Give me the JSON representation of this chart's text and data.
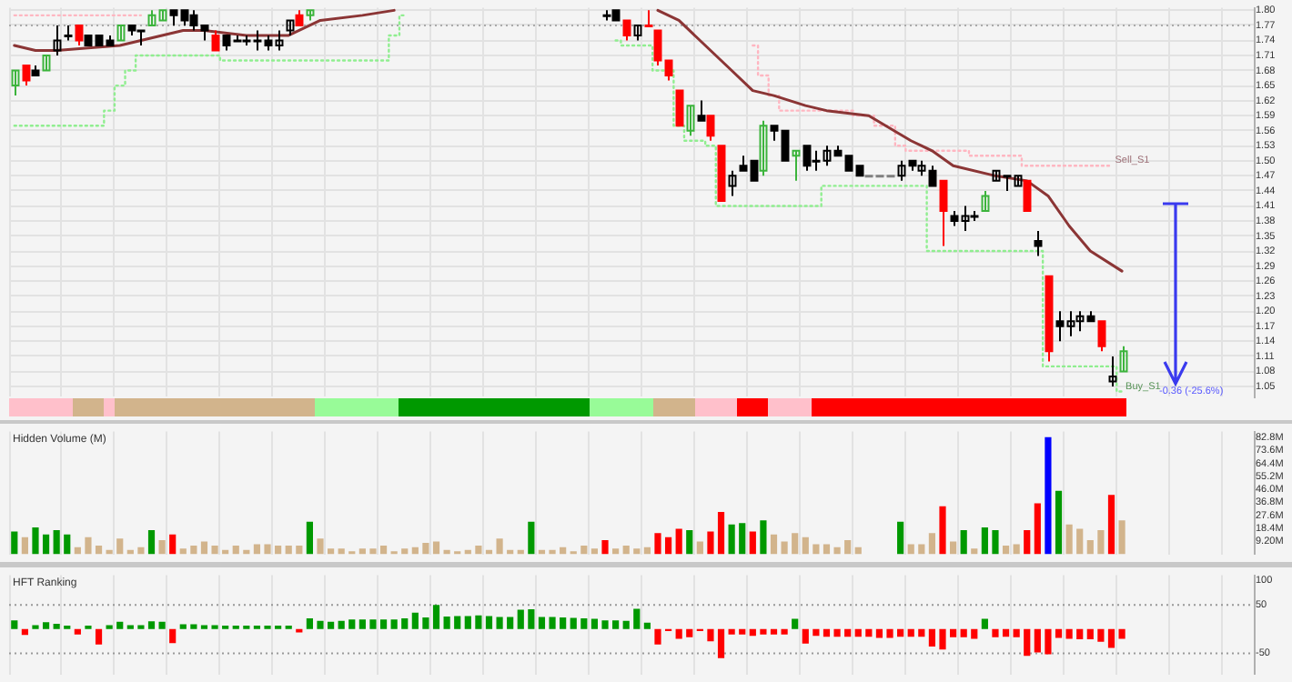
{
  "chart_data": [
    {
      "type": "candlestick",
      "categories": [
        null,
        null,
        null,
        null,
        null,
        null,
        null,
        null,
        null,
        null,
        null,
        null,
        null,
        null,
        null,
        null,
        null,
        null,
        null,
        null,
        null,
        null,
        null,
        null,
        null,
        null,
        null,
        null,
        null,
        null,
        null,
        null,
        null,
        null,
        null,
        null,
        null,
        null,
        null,
        null,
        null,
        null,
        null,
        null,
        null,
        null,
        null,
        null,
        null,
        null,
        null,
        null,
        null,
        null,
        null,
        null,
        null,
        null,
        null,
        null,
        null,
        null,
        null,
        null,
        null,
        null,
        null,
        null,
        null,
        null,
        null,
        null,
        null,
        null,
        null,
        null,
        null,
        null,
        null,
        null,
        null,
        null,
        null,
        null,
        null,
        null,
        null,
        null,
        null,
        null,
        null,
        null,
        null,
        null,
        null,
        null,
        null,
        null,
        null,
        null,
        null,
        null,
        null,
        null,
        null,
        null,
        null,
        null,
        null,
        null,
        null,
        null,
        null,
        null,
        null,
        null,
        null,
        null
      ],
      "ohlc": [
        [
          1.65,
          1.68,
          1.63,
          1.68
        ],
        [
          1.69,
          1.69,
          1.65,
          1.66
        ],
        [
          1.68,
          1.69,
          1.67,
          1.67
        ],
        [
          1.68,
          1.71,
          1.68,
          1.71
        ],
        [
          1.72,
          1.77,
          1.71,
          1.74
        ],
        [
          1.75,
          1.77,
          1.74,
          1.75
        ],
        [
          1.77,
          1.77,
          1.73,
          1.74
        ],
        [
          1.75,
          1.75,
          1.73,
          1.73
        ],
        [
          1.75,
          1.75,
          1.73,
          1.73
        ],
        [
          1.74,
          1.75,
          1.73,
          1.73
        ],
        [
          1.74,
          1.77,
          1.74,
          1.77
        ],
        [
          1.77,
          1.77,
          1.75,
          1.76
        ],
        [
          1.76,
          1.76,
          1.73,
          1.76
        ],
        [
          1.77,
          1.8,
          1.77,
          1.79
        ],
        [
          1.78,
          1.8,
          1.78,
          1.8
        ],
        [
          1.8,
          1.8,
          1.77,
          1.79
        ],
        [
          1.8,
          1.8,
          1.77,
          1.78
        ],
        [
          1.79,
          1.8,
          1.76,
          1.77
        ],
        [
          1.77,
          1.77,
          1.74,
          1.76
        ],
        [
          1.75,
          1.76,
          1.72,
          1.72
        ],
        [
          1.75,
          1.75,
          1.72,
          1.73
        ],
        [
          1.74,
          1.75,
          1.74,
          1.74
        ],
        [
          1.74,
          1.75,
          1.73,
          1.74
        ],
        [
          1.74,
          1.76,
          1.72,
          1.74
        ],
        [
          1.74,
          1.75,
          1.72,
          1.73
        ],
        [
          1.73,
          1.76,
          1.72,
          1.74
        ],
        [
          1.76,
          1.78,
          1.75,
          1.78
        ],
        [
          1.79,
          1.8,
          1.77,
          1.77
        ],
        [
          1.79,
          1.8,
          1.78,
          1.8
        ],
        null,
        null,
        null,
        null,
        null,
        null,
        null,
        null,
        null,
        null,
        null,
        null,
        null,
        null,
        null,
        null,
        null,
        null,
        null,
        null,
        null,
        null,
        null,
        null,
        null,
        null,
        null,
        [
          1.79,
          1.8,
          1.78,
          1.79
        ],
        [
          1.8,
          1.8,
          1.78,
          1.78
        ],
        [
          1.78,
          1.78,
          1.74,
          1.75
        ],
        [
          1.75,
          1.77,
          1.74,
          1.77
        ],
        [
          1.77,
          1.8,
          1.77,
          1.77
        ],
        [
          1.76,
          1.76,
          1.69,
          1.7
        ],
        [
          1.7,
          1.7,
          1.66,
          1.67
        ],
        [
          1.64,
          1.64,
          1.57,
          1.57
        ],
        [
          1.56,
          1.61,
          1.55,
          1.61
        ],
        [
          1.59,
          1.62,
          1.58,
          1.58
        ],
        [
          1.59,
          1.59,
          1.54,
          1.55
        ],
        [
          1.53,
          1.53,
          1.42,
          1.42
        ],
        [
          1.45,
          1.48,
          1.43,
          1.47
        ],
        [
          1.49,
          1.51,
          1.48,
          1.48
        ],
        [
          1.5,
          1.5,
          1.46,
          1.46
        ],
        [
          1.48,
          1.58,
          1.47,
          1.57
        ],
        [
          1.57,
          1.57,
          1.54,
          1.56
        ],
        [
          1.56,
          1.56,
          1.5,
          1.5
        ],
        [
          1.51,
          1.52,
          1.46,
          1.52
        ],
        [
          1.53,
          1.53,
          1.48,
          1.49
        ],
        [
          1.5,
          1.52,
          1.48,
          1.5
        ],
        [
          1.5,
          1.53,
          1.49,
          1.52
        ],
        [
          1.52,
          1.53,
          1.51,
          1.51
        ],
        [
          1.51,
          1.51,
          1.48,
          1.48
        ],
        [
          1.49,
          1.49,
          1.47,
          1.47
        ],
        [
          1.47,
          1.47,
          1.47,
          1.47
        ],
        [
          1.47,
          1.47,
          1.47,
          1.47
        ],
        [
          1.47,
          1.47,
          1.47,
          1.47
        ],
        [
          1.47,
          1.5,
          1.46,
          1.49
        ],
        [
          1.5,
          1.5,
          1.48,
          1.49
        ],
        [
          1.48,
          1.5,
          1.47,
          1.49
        ],
        [
          1.48,
          1.49,
          1.45,
          1.45
        ],
        [
          1.46,
          1.46,
          1.33,
          1.4
        ],
        [
          1.39,
          1.4,
          1.37,
          1.38
        ],
        [
          1.38,
          1.41,
          1.36,
          1.39
        ],
        [
          1.39,
          1.4,
          1.38,
          1.39
        ],
        [
          1.4,
          1.44,
          1.4,
          1.43
        ],
        [
          1.46,
          1.48,
          1.46,
          1.48
        ],
        [
          1.47,
          1.47,
          1.44,
          1.47
        ],
        [
          1.45,
          1.47,
          1.45,
          1.47
        ],
        [
          1.46,
          1.46,
          1.4,
          1.4
        ],
        [
          1.34,
          1.36,
          1.31,
          1.33
        ],
        [
          1.27,
          1.27,
          1.1,
          1.12
        ],
        [
          1.18,
          1.2,
          1.14,
          1.17
        ],
        [
          1.17,
          1.2,
          1.15,
          1.18
        ],
        [
          1.18,
          1.2,
          1.16,
          1.19
        ],
        [
          1.19,
          1.2,
          1.18,
          1.18
        ],
        [
          1.18,
          1.18,
          1.12,
          1.13
        ],
        [
          1.06,
          1.11,
          1.05,
          1.07
        ],
        [
          1.08,
          1.13,
          1.08,
          1.12
        ],
        null,
        null,
        null,
        null,
        null,
        null,
        null,
        null,
        null,
        null,
        null,
        null
      ],
      "colors": [
        "#3cb43c",
        "#ff0000",
        "#000000",
        "#3cb43c",
        "#000000",
        "#000000",
        "#ff0000",
        "#000000",
        "#000000",
        "#000000",
        "#3cb43c",
        "#000000",
        "#000000",
        "#3cb43c",
        "#3cb43c",
        "#000000",
        "#000000",
        "#000000",
        "#000000",
        "#ff0000",
        "#000000",
        "#000000",
        "#000000",
        "#000000",
        "#000000",
        "#000000",
        "#000000",
        "#ff0000",
        "#3cb43c",
        null,
        null,
        null,
        null,
        null,
        null,
        null,
        null,
        null,
        null,
        null,
        null,
        null,
        null,
        null,
        null,
        null,
        null,
        null,
        null,
        null,
        null,
        null,
        null,
        null,
        null,
        null,
        "#000000",
        "#000000",
        "#ff0000",
        "#000000",
        "#ff0000",
        "#ff0000",
        "#ff0000",
        "#ff0000",
        "#3cb43c",
        "#000000",
        "#ff0000",
        "#ff0000",
        "#000000",
        "#000000",
        "#000000",
        "#3cb43c",
        "#000000",
        "#000000",
        "#3cb43c",
        "#000000",
        "#000000",
        "#000000",
        "#000000",
        "#000000",
        "#000000",
        "#808080",
        "#808080",
        "#808080",
        "#000000",
        "#000000",
        "#000000",
        "#000000",
        "#ff0000",
        "#000000",
        "#000000",
        "#000000",
        "#3cb43c",
        "#000000",
        "#000000",
        "#000000",
        "#ff0000",
        "#000000",
        "#ff0000",
        "#000000",
        "#000000",
        "#000000",
        "#000000",
        "#ff0000",
        "#000000",
        "#3cb43c",
        null,
        null,
        null,
        null,
        null,
        null,
        null,
        null,
        null,
        null,
        null,
        null
      ],
      "series": [
        {
          "type": "line",
          "color": "#8b3535",
          "values": [
            1.73,
            null,
            1.72,
            null,
            1.72,
            null,
            null,
            null,
            null,
            null,
            1.73,
            null,
            null,
            null,
            1.75,
            null,
            1.76,
            null,
            1.76,
            null,
            null,
            null,
            1.75,
            null,
            null,
            null,
            1.75,
            null,
            null,
            1.78,
            null,
            null,
            null,
            1.79,
            null,
            null,
            1.8,
            null,
            null,
            null,
            null,
            null,
            null,
            null,
            null,
            null,
            null,
            null,
            null,
            null,
            null,
            null,
            null,
            null,
            null,
            null,
            null,
            null,
            null,
            null,
            null,
            null,
            null,
            null,
            null,
            null,
            null,
            null,
            null,
            null,
            null,
            null,
            null,
            null,
            null,
            null,
            null,
            null,
            null,
            null,
            null,
            null,
            null,
            null,
            null,
            null,
            null,
            null,
            null,
            null,
            null,
            null,
            null,
            null,
            null,
            null,
            null,
            null,
            null,
            null,
            null,
            null,
            null,
            null,
            null,
            null,
            null,
            null,
            null,
            null,
            null,
            null,
            null,
            null,
            null,
            null,
            null,
            null
          ]
        },
        {
          "type": "line",
          "color": "#8b3535",
          "values": [
            null,
            null,
            null,
            null,
            null,
            null,
            null,
            null,
            null,
            null,
            null,
            null,
            null,
            null,
            null,
            null,
            null,
            null,
            null,
            null,
            null,
            null,
            null,
            null,
            null,
            null,
            null,
            null,
            null,
            null,
            null,
            null,
            null,
            null,
            null,
            null,
            null,
            null,
            null,
            null,
            null,
            null,
            null,
            null,
            null,
            null,
            null,
            null,
            null,
            null,
            null,
            null,
            null,
            null,
            null,
            null,
            null,
            null,
            null,
            null,
            null,
            1.8,
            null,
            1.78,
            null,
            null,
            1.72,
            null,
            1.68,
            null,
            1.64,
            null,
            1.63,
            null,
            null,
            1.61,
            null,
            1.6,
            null,
            null,
            null,
            1.59,
            null,
            null,
            null,
            1.54,
            null,
            1.52,
            null,
            1.49,
            null,
            null,
            null,
            1.47,
            null,
            null,
            1.46,
            null,
            1.43,
            null,
            1.37,
            null,
            1.32,
            null,
            null,
            1.28,
            null,
            null,
            null,
            null,
            null,
            null,
            null,
            null,
            null,
            null,
            null,
            null
          ]
        },
        {
          "type": "step",
          "name": "Buy_S1",
          "color": "#90ee90",
          "line_style": "dotted",
          "values": [
            1.57,
            1.57,
            1.57,
            1.57,
            1.57,
            1.57,
            1.57,
            1.57,
            1.57,
            1.6,
            1.65,
            1.68,
            1.71,
            1.71,
            1.71,
            1.71,
            1.71,
            1.71,
            1.71,
            1.71,
            1.7,
            1.7,
            1.7,
            1.7,
            1.7,
            1.7,
            1.7,
            1.7,
            1.7,
            1.7,
            1.7,
            1.7,
            1.7,
            1.7,
            1.7,
            1.7,
            1.75,
            1.79,
            null,
            null,
            null,
            null,
            null,
            null,
            null,
            null,
            null,
            null,
            null,
            null,
            null,
            null,
            null,
            null,
            null,
            null,
            null,
            1.74,
            1.73,
            1.73,
            1.73,
            1.68,
            1.68,
            1.57,
            1.54,
            1.54,
            1.53,
            1.41,
            1.41,
            1.41,
            1.41,
            1.41,
            1.41,
            1.41,
            1.41,
            1.41,
            1.41,
            1.45,
            1.45,
            1.45,
            1.45,
            1.45,
            1.45,
            1.45,
            1.45,
            1.45,
            1.45,
            1.32,
            1.32,
            1.32,
            1.32,
            1.32,
            1.32,
            1.32,
            1.32,
            1.32,
            1.32,
            1.32,
            1.09,
            1.09,
            1.09,
            1.09,
            1.09,
            1.09,
            1.09,
            1.04,
            null,
            null,
            null,
            null,
            null,
            null,
            null,
            null,
            null,
            null,
            null,
            null
          ]
        },
        {
          "type": "step",
          "name": "Sell_S1",
          "color": "#ffb6c1",
          "line_style": "dotted",
          "values": [
            1.79,
            1.79,
            1.79,
            1.79,
            1.79,
            1.79,
            1.79,
            1.79,
            1.79,
            1.79,
            1.79,
            1.79,
            1.79,
            null,
            null,
            null,
            null,
            null,
            null,
            null,
            null,
            null,
            null,
            null,
            null,
            null,
            null,
            null,
            null,
            null,
            null,
            null,
            null,
            null,
            null,
            null,
            null,
            null,
            null,
            null,
            null,
            null,
            null,
            null,
            null,
            null,
            null,
            null,
            null,
            null,
            null,
            null,
            null,
            null,
            null,
            null,
            null,
            null,
            null,
            null,
            null,
            null,
            null,
            null,
            null,
            null,
            null,
            null,
            null,
            null,
            1.73,
            1.67,
            1.63,
            1.6,
            1.6,
            1.6,
            1.6,
            1.6,
            1.6,
            1.6,
            1.59,
            1.59,
            1.57,
            1.57,
            1.53,
            1.52,
            1.52,
            1.52,
            1.52,
            1.52,
            1.52,
            1.51,
            1.51,
            1.51,
            1.51,
            1.51,
            1.49,
            1.49,
            1.49,
            1.49,
            1.49,
            1.49,
            1.49,
            1.49,
            1.49,
            null,
            null,
            null,
            null,
            null,
            null,
            null,
            null,
            null,
            null,
            null,
            null,
            null
          ]
        }
      ],
      "ylim": [
        1.03,
        1.805
      ],
      "yticks": [
        {
          "value": 1.8,
          "label": "1.80"
        },
        1.77,
        1.74,
        1.71,
        1.68,
        1.65,
        1.62,
        1.59,
        1.56,
        1.53,
        {
          "value": 1.5,
          "label": "1.50"
        },
        1.47,
        1.44,
        1.41,
        1.38,
        1.35,
        1.32,
        1.29,
        1.26,
        1.23,
        {
          "value": 1.2,
          "label": "1.20"
        },
        1.17,
        1.14,
        1.11,
        1.08,
        1.05
      ],
      "ref_lines": [
        {
          "axis": "y",
          "value": 1.77,
          "color": "#aaaaaa",
          "line_style": "dotted"
        }
      ],
      "annotations": [
        "-0.36 (-25.6%)"
      ],
      "grid": true,
      "tick_labels": "y"
    },
    {
      "type": "bar",
      "title": "Hidden Volume (M)",
      "categories": [
        null,
        null,
        null,
        null,
        null,
        null,
        null,
        null,
        null,
        null,
        null,
        null,
        null,
        null,
        null,
        null,
        null,
        null,
        null,
        null,
        null,
        null,
        null,
        null,
        null,
        null,
        null,
        null,
        null,
        null,
        null,
        null,
        null,
        null,
        null,
        null,
        null,
        null,
        null,
        null,
        null,
        null,
        null,
        null,
        null,
        null,
        null,
        null,
        null,
        null,
        null,
        null,
        null,
        null,
        null,
        null,
        null,
        null,
        null,
        null,
        null,
        null,
        null,
        null,
        null,
        null,
        null,
        null,
        null,
        null,
        null,
        null,
        null,
        null,
        null,
        null,
        null,
        null,
        null,
        null,
        null,
        null,
        null,
        null,
        null,
        null,
        null,
        null,
        null,
        null,
        null,
        null,
        null,
        null,
        null,
        null,
        null,
        null,
        null,
        null,
        null,
        null,
        null,
        null,
        null,
        null,
        null,
        null,
        null,
        null,
        null,
        null,
        null,
        null,
        null,
        null,
        null,
        null
      ],
      "values": [
        16,
        12,
        19,
        14,
        17,
        14,
        5,
        12,
        6,
        3,
        11,
        3,
        5,
        17,
        10,
        14,
        4,
        6,
        9,
        6,
        3,
        6,
        3,
        7,
        7,
        6,
        6,
        6,
        23,
        11,
        4,
        4,
        2,
        4,
        4,
        6,
        2,
        4,
        5,
        8,
        9,
        3,
        2,
        3,
        6,
        3,
        11,
        3,
        3,
        23,
        3,
        3,
        5,
        2,
        6,
        4,
        10,
        4,
        6,
        4,
        5,
        15,
        12,
        18,
        17,
        9,
        16,
        30,
        21,
        22,
        16,
        24,
        14,
        9,
        15,
        12,
        7,
        7,
        5,
        10,
        5,
        null,
        null,
        null,
        23,
        7,
        7,
        15,
        34,
        9,
        17,
        4,
        19,
        17,
        6,
        7,
        17,
        36,
        83,
        45,
        21,
        18,
        10,
        17,
        42,
        24,
        null,
        null,
        null,
        null,
        null,
        null,
        null,
        null,
        null,
        null,
        null,
        null
      ],
      "colors": [
        "#009900",
        "#d2b48c",
        "#009900",
        "#009900",
        "#009900",
        "#009900",
        "#d2b48c",
        "#d2b48c",
        "#d2b48c",
        "#d2b48c",
        "#d2b48c",
        "#d2b48c",
        "#d2b48c",
        "#009900",
        "#d2b48c",
        "#ff0000",
        "#d2b48c",
        "#d2b48c",
        "#d2b48c",
        "#d2b48c",
        "#d2b48c",
        "#d2b48c",
        "#d2b48c",
        "#d2b48c",
        "#d2b48c",
        "#d2b48c",
        "#d2b48c",
        "#d2b48c",
        "#009900",
        "#d2b48c",
        "#d2b48c",
        "#d2b48c",
        "#d2b48c",
        "#d2b48c",
        "#d2b48c",
        "#d2b48c",
        "#d2b48c",
        "#d2b48c",
        "#d2b48c",
        "#d2b48c",
        "#d2b48c",
        "#d2b48c",
        "#d2b48c",
        "#d2b48c",
        "#d2b48c",
        "#d2b48c",
        "#d2b48c",
        "#d2b48c",
        "#d2b48c",
        "#009900",
        "#d2b48c",
        "#d2b48c",
        "#d2b48c",
        "#d2b48c",
        "#d2b48c",
        "#d2b48c",
        "#ff0000",
        "#d2b48c",
        "#d2b48c",
        "#d2b48c",
        "#d2b48c",
        "#ff0000",
        "#ff0000",
        "#ff0000",
        "#009900",
        "#d2b48c",
        "#ff0000",
        "#ff0000",
        "#009900",
        "#009900",
        "#ff0000",
        "#009900",
        "#d2b48c",
        "#d2b48c",
        "#d2b48c",
        "#d2b48c",
        "#d2b48c",
        "#d2b48c",
        "#d2b48c",
        "#d2b48c",
        "#d2b48c",
        null,
        null,
        null,
        "#009900",
        "#d2b48c",
        "#d2b48c",
        "#d2b48c",
        "#ff0000",
        "#d2b48c",
        "#009900",
        "#d2b48c",
        "#009900",
        "#009900",
        "#d2b48c",
        "#d2b48c",
        "#ff0000",
        "#ff0000",
        "#0000ff",
        "#009900",
        "#d2b48c",
        "#d2b48c",
        "#d2b48c",
        "#d2b48c",
        "#ff0000",
        "#d2b48c",
        null,
        null,
        null,
        null,
        null,
        null,
        null,
        null,
        null,
        null,
        null,
        null
      ],
      "ylim": [
        0,
        87
      ],
      "yticks": [
        {
          "value": 82.8,
          "label": "82.8M"
        },
        {
          "value": 73.6,
          "label": "73.6M"
        },
        {
          "value": 64.4,
          "label": "64.4M"
        },
        {
          "value": 55.2,
          "label": "55.2M"
        },
        {
          "value": 46,
          "label": "46.0M"
        },
        {
          "value": 36.8,
          "label": "36.8M"
        },
        {
          "value": 27.6,
          "label": "27.6M"
        },
        {
          "value": 18.4,
          "label": "18.4M"
        },
        {
          "value": 9.2,
          "label": "9.20M"
        }
      ],
      "grid": "x",
      "tick_labels": "y"
    },
    {
      "type": "bar",
      "title": "HFT Ranking",
      "categories": [
        null,
        null,
        null,
        null,
        null,
        null,
        null,
        null,
        null,
        null,
        null,
        null,
        null,
        null,
        null,
        null,
        null,
        null,
        null,
        null,
        null,
        null,
        null,
        null,
        null,
        null,
        null,
        null,
        null,
        null,
        null,
        null,
        null,
        null,
        null,
        null,
        null,
        null,
        null,
        null,
        null,
        null,
        null,
        null,
        null,
        null,
        null,
        null,
        null,
        null,
        null,
        null,
        null,
        null,
        null,
        null,
        null,
        null,
        null,
        null,
        null,
        null,
        null,
        null,
        null,
        null,
        null,
        null,
        null,
        null,
        null,
        null,
        null,
        null,
        null,
        null,
        null,
        null,
        null,
        null,
        null,
        null,
        null,
        null,
        null,
        null,
        null,
        null,
        null,
        null,
        null,
        null,
        null,
        null,
        null,
        null,
        null,
        null,
        null,
        null,
        null,
        null,
        null,
        null,
        null,
        null,
        null,
        null,
        null,
        null,
        null,
        null,
        null,
        null,
        null,
        null,
        null,
        null
      ],
      "values": [
        18,
        -12,
        8,
        14,
        11,
        7,
        -11,
        7,
        -32,
        8,
        15,
        8,
        8,
        16,
        15,
        -29,
        10,
        10,
        8,
        8,
        7,
        7,
        7,
        7,
        7,
        7,
        7,
        -7,
        22,
        17,
        15,
        17,
        20,
        20,
        20,
        20,
        20,
        22,
        34,
        24,
        50,
        26,
        27,
        27,
        28,
        27,
        25,
        25,
        40,
        41,
        25,
        25,
        24,
        23,
        22,
        21,
        18,
        18,
        17,
        42,
        13,
        -32,
        -4,
        -20,
        -17,
        -4,
        -25,
        -60,
        -11,
        -11,
        -14,
        -11,
        -11,
        -11,
        21,
        -30,
        -14,
        -16,
        -16,
        -16,
        -16,
        -16,
        -18,
        -18,
        -16,
        -16,
        -16,
        -36,
        -42,
        -17,
        -17,
        -20,
        21,
        -17,
        -16,
        -17,
        -55,
        -48,
        -52,
        -18,
        -20,
        -21,
        -21,
        -26,
        -39,
        -20,
        null,
        null,
        null,
        null,
        null,
        null,
        null,
        null,
        null,
        null,
        null,
        null
      ],
      "colors": [
        "#009900",
        "#ff0000",
        "#009900",
        "#009900",
        "#009900",
        "#009900",
        "#ff0000",
        "#009900",
        "#ff0000",
        "#009900",
        "#009900",
        "#009900",
        "#009900",
        "#009900",
        "#009900",
        "#ff0000",
        "#009900",
        "#009900",
        "#009900",
        "#009900",
        "#009900",
        "#009900",
        "#009900",
        "#009900",
        "#009900",
        "#009900",
        "#009900",
        "#ff0000",
        "#009900",
        "#009900",
        "#009900",
        "#009900",
        "#009900",
        "#009900",
        "#009900",
        "#009900",
        "#009900",
        "#009900",
        "#009900",
        "#009900",
        "#009900",
        "#009900",
        "#009900",
        "#009900",
        "#009900",
        "#009900",
        "#009900",
        "#009900",
        "#009900",
        "#009900",
        "#009900",
        "#009900",
        "#009900",
        "#009900",
        "#009900",
        "#009900",
        "#009900",
        "#009900",
        "#009900",
        "#009900",
        "#009900",
        "#ff0000",
        "#ff0000",
        "#ff0000",
        "#ff0000",
        "#ff0000",
        "#ff0000",
        "#ff0000",
        "#ff0000",
        "#ff0000",
        "#ff0000",
        "#ff0000",
        "#ff0000",
        "#ff0000",
        "#009900",
        "#ff0000",
        "#ff0000",
        "#ff0000",
        "#ff0000",
        "#ff0000",
        "#ff0000",
        "#ff0000",
        "#ff0000",
        "#ff0000",
        "#ff0000",
        "#ff0000",
        "#ff0000",
        "#ff0000",
        "#ff0000",
        "#ff0000",
        "#ff0000",
        "#ff0000",
        "#009900",
        "#ff0000",
        "#ff0000",
        "#ff0000",
        "#ff0000",
        "#ff0000",
        "#ff0000",
        "#ff0000",
        "#ff0000",
        "#ff0000",
        "#ff0000",
        "#ff0000",
        "#ff0000",
        "#ff0000",
        null,
        null,
        null,
        null,
        null,
        null,
        null,
        null,
        null,
        null,
        null,
        null
      ],
      "ylim": [
        -93,
        111
      ],
      "yticks": [
        100,
        50,
        -50
      ],
      "ref_lines": [
        {
          "axis": "y",
          "value": 50,
          "color": "#999999",
          "line_style": "dotted"
        },
        {
          "axis": "y",
          "value": -50,
          "color": "#999999",
          "line_style": "dotted"
        }
      ],
      "grid": "x",
      "tick_labels": "y"
    }
  ]
}
